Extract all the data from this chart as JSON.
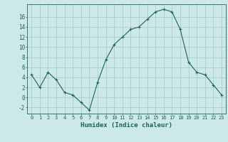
{
  "x": [
    0,
    1,
    2,
    3,
    4,
    5,
    6,
    7,
    8,
    9,
    10,
    11,
    12,
    13,
    14,
    15,
    16,
    17,
    18,
    19,
    20,
    21,
    22,
    23
  ],
  "y": [
    4.5,
    2.0,
    5.0,
    3.5,
    1.0,
    0.5,
    -1.0,
    -2.5,
    3.0,
    7.5,
    10.5,
    12.0,
    13.5,
    14.0,
    15.5,
    17.0,
    17.5,
    17.0,
    13.5,
    7.0,
    5.0,
    4.5,
    2.5,
    0.5
  ],
  "line_color": "#1a6655",
  "marker": "+",
  "bg_color": "#cce8e8",
  "grid_color": "#aacccc",
  "xlabel": "Humidex (Indice chaleur)",
  "xlim": [
    -0.5,
    23.5
  ],
  "ylim": [
    -3.2,
    18.5
  ],
  "yticks": [
    -2,
    0,
    2,
    4,
    6,
    8,
    10,
    12,
    14,
    16
  ],
  "xticks": [
    0,
    1,
    2,
    3,
    4,
    5,
    6,
    7,
    8,
    9,
    10,
    11,
    12,
    13,
    14,
    15,
    16,
    17,
    18,
    19,
    20,
    21,
    22,
    23
  ],
  "xtick_labels": [
    "0",
    "1",
    "2",
    "3",
    "4",
    "5",
    "6",
    "7",
    "8",
    "9",
    "10",
    "11",
    "12",
    "13",
    "14",
    "15",
    "16",
    "17",
    "18",
    "19",
    "20",
    "21",
    "22",
    "23"
  ],
  "label_color": "#1a6655",
  "tick_color": "#1a6655",
  "axis_color": "#1a6655",
  "tick_fontsize": 5,
  "label_fontsize": 6.5
}
